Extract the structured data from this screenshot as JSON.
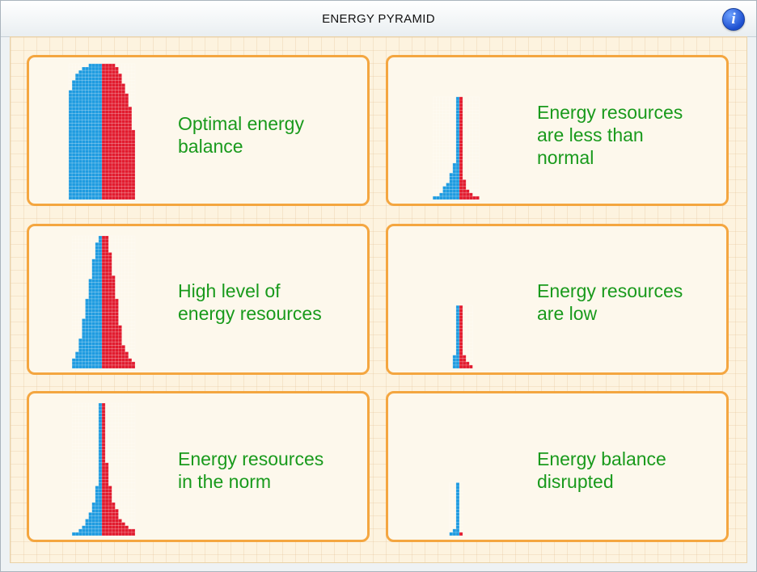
{
  "window": {
    "title": "ENERGY PYRAMID",
    "info_icon": "info-icon"
  },
  "colors": {
    "left": "#1e9be0",
    "right": "#e11b2e",
    "border": "#f4a640",
    "text": "#199a1c"
  },
  "cards": [
    {
      "label_lines": [
        "Optimal energy",
        "balance"
      ],
      "left": [
        4,
        6,
        7,
        8,
        8,
        9,
        9,
        9,
        10,
        10,
        10,
        10,
        10,
        10,
        10,
        10,
        10,
        10,
        10,
        10,
        10,
        10,
        10,
        10,
        10,
        10,
        10,
        10,
        10,
        10,
        10,
        10,
        10,
        10,
        10,
        10,
        10,
        10,
        10,
        10,
        10
      ],
      "right": [
        4,
        5,
        5,
        6,
        6,
        6,
        7,
        7,
        7,
        8,
        8,
        8,
        8,
        9,
        9,
        9,
        9,
        9,
        9,
        9,
        10,
        10,
        10,
        10,
        10,
        10,
        10,
        10,
        10,
        10,
        10,
        10,
        10,
        10,
        10,
        10,
        10,
        10,
        10,
        10,
        10
      ]
    },
    {
      "label_lines": [
        "Energy resources",
        "are less than",
        "normal"
      ],
      "left": [
        1,
        1,
        1,
        1,
        1,
        1,
        1,
        1,
        1,
        1,
        1,
        1,
        1,
        1,
        1,
        1,
        1,
        1,
        1,
        1,
        2,
        2,
        2,
        3,
        3,
        3,
        4,
        5,
        5,
        6,
        8
      ],
      "right": [
        1,
        1,
        1,
        1,
        1,
        1,
        1,
        1,
        1,
        1,
        1,
        1,
        1,
        1,
        1,
        1,
        1,
        1,
        1,
        1,
        1,
        1,
        1,
        1,
        1,
        2,
        2,
        2,
        3,
        4,
        6
      ]
    },
    {
      "label_lines": [
        "High level of",
        "energy resources"
      ],
      "left": [
        1,
        1,
        2,
        2,
        2,
        2,
        2,
        3,
        3,
        3,
        3,
        3,
        3,
        4,
        4,
        4,
        4,
        4,
        4,
        5,
        5,
        5,
        5,
        5,
        5,
        6,
        6,
        6,
        6,
        6,
        6,
        7,
        7,
        7,
        7,
        8,
        8,
        9,
        9,
        9
      ],
      "right": [
        2,
        2,
        2,
        2,
        2,
        3,
        3,
        3,
        3,
        3,
        3,
        3,
        4,
        4,
        4,
        4,
        4,
        4,
        4,
        5,
        5,
        5,
        5,
        5,
        5,
        5,
        5,
        6,
        6,
        6,
        6,
        6,
        6,
        7,
        7,
        8,
        8,
        9,
        10,
        10
      ]
    },
    {
      "label_lines": [
        "Energy resources",
        "are low"
      ],
      "left": [
        1,
        1,
        1,
        1,
        1,
        1,
        1,
        1,
        1,
        1,
        1,
        1,
        1,
        1,
        1,
        2,
        2,
        2,
        2
      ],
      "right": [
        1,
        1,
        1,
        1,
        1,
        1,
        1,
        1,
        1,
        1,
        1,
        1,
        1,
        1,
        1,
        2,
        2,
        3,
        4
      ]
    },
    {
      "label_lines": [
        "Energy resources",
        "in the norm"
      ],
      "left": [
        1,
        1,
        1,
        1,
        1,
        1,
        1,
        1,
        1,
        1,
        1,
        1,
        1,
        1,
        1,
        1,
        1,
        1,
        1,
        1,
        1,
        1,
        1,
        1,
        1,
        2,
        2,
        2,
        2,
        2,
        3,
        3,
        3,
        4,
        4,
        5,
        5,
        6,
        7,
        9
      ],
      "right": [
        1,
        1,
        1,
        1,
        1,
        1,
        1,
        1,
        1,
        1,
        1,
        1,
        1,
        1,
        1,
        1,
        1,
        1,
        2,
        2,
        2,
        2,
        2,
        2,
        2,
        3,
        3,
        3,
        3,
        3,
        4,
        4,
        5,
        5,
        5,
        6,
        7,
        8,
        10,
        10
      ]
    },
    {
      "label_lines": [
        "Energy balance",
        "disrupted"
      ],
      "left": [
        1,
        1,
        1,
        1,
        1,
        1,
        1,
        1,
        1,
        1,
        1,
        1,
        1,
        1,
        2,
        3
      ],
      "right": [
        0,
        0,
        0,
        0,
        0,
        0,
        0,
        0,
        0,
        0,
        0,
        0,
        0,
        0,
        0,
        1
      ]
    }
  ]
}
